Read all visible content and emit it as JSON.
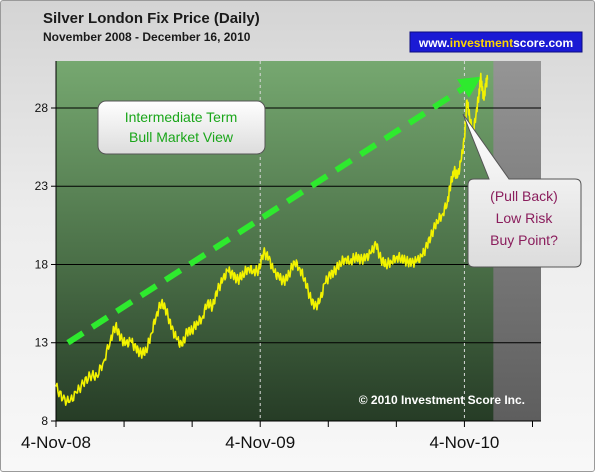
{
  "chart_data": {
    "type": "line",
    "title": "Silver London Fix Price (Daily)",
    "subtitle": "November 2008 - December 16, 2010",
    "website": {
      "prefix": "www.",
      "highlight": "investment",
      "suffix": "score.com"
    },
    "copyright": "© 2010 Investment Score Inc.",
    "yticks": [
      8,
      13,
      18,
      23,
      28
    ],
    "ylim": [
      8,
      31
    ],
    "xticks": [
      {
        "label": "4-Nov-08",
        "t": 0
      },
      {
        "label": "4-Nov-09",
        "t": 12
      },
      {
        "label": "4-Nov-10",
        "t": 24
      }
    ],
    "xlim": [
      0,
      28.5
    ],
    "series": [
      {
        "color": "#f2f200",
        "points": [
          [
            0.0,
            10.2
          ],
          [
            0.4,
            9.4
          ],
          [
            0.8,
            9.2
          ],
          [
            1.2,
            9.8
          ],
          [
            1.6,
            10.4
          ],
          [
            2.0,
            10.9
          ],
          [
            2.4,
            10.9
          ],
          [
            2.8,
            11.8
          ],
          [
            3.2,
            13.2
          ],
          [
            3.5,
            14.1
          ],
          [
            3.8,
            13.3
          ],
          [
            4.1,
            12.9
          ],
          [
            4.4,
            13.1
          ],
          [
            4.7,
            12.6
          ],
          [
            5.0,
            12.3
          ],
          [
            5.3,
            12.5
          ],
          [
            5.6,
            13.6
          ],
          [
            5.9,
            14.8
          ],
          [
            6.2,
            15.6
          ],
          [
            6.5,
            15.0
          ],
          [
            6.8,
            13.9
          ],
          [
            7.1,
            13.2
          ],
          [
            7.4,
            12.8
          ],
          [
            7.7,
            13.7
          ],
          [
            8.0,
            13.8
          ],
          [
            8.3,
            14.3
          ],
          [
            8.6,
            14.6
          ],
          [
            8.9,
            15.6
          ],
          [
            9.2,
            15.3
          ],
          [
            9.5,
            16.4
          ],
          [
            9.8,
            17.0
          ],
          [
            10.1,
            17.6
          ],
          [
            10.4,
            17.3
          ],
          [
            10.7,
            17.0
          ],
          [
            11.0,
            17.4
          ],
          [
            11.3,
            17.8
          ],
          [
            11.6,
            17.6
          ],
          [
            11.9,
            17.6
          ],
          [
            12.2,
            18.8
          ],
          [
            12.5,
            18.4
          ],
          [
            12.8,
            17.5
          ],
          [
            13.1,
            17.2
          ],
          [
            13.4,
            16.9
          ],
          [
            13.7,
            17.4
          ],
          [
            14.0,
            18.2
          ],
          [
            14.3,
            17.8
          ],
          [
            14.6,
            17.1
          ],
          [
            14.9,
            16.0
          ],
          [
            15.2,
            15.3
          ],
          [
            15.5,
            15.6
          ],
          [
            15.8,
            16.8
          ],
          [
            16.1,
            17.3
          ],
          [
            16.4,
            17.6
          ],
          [
            16.7,
            18.1
          ],
          [
            17.0,
            18.4
          ],
          [
            17.3,
            18.2
          ],
          [
            17.6,
            18.5
          ],
          [
            17.9,
            18.3
          ],
          [
            18.2,
            18.4
          ],
          [
            18.5,
            18.7
          ],
          [
            18.8,
            19.3
          ],
          [
            19.1,
            18.3
          ],
          [
            19.4,
            18.0
          ],
          [
            19.7,
            18.2
          ],
          [
            20.0,
            18.5
          ],
          [
            20.3,
            18.4
          ],
          [
            20.6,
            18.2
          ],
          [
            20.9,
            18.1
          ],
          [
            21.2,
            18.2
          ],
          [
            21.5,
            18.5
          ],
          [
            21.8,
            19.2
          ],
          [
            22.1,
            20.0
          ],
          [
            22.4,
            20.8
          ],
          [
            22.7,
            21.2
          ],
          [
            23.0,
            22.0
          ],
          [
            23.2,
            23.2
          ],
          [
            23.4,
            24.0
          ],
          [
            23.6,
            23.6
          ],
          [
            23.8,
            24.6
          ],
          [
            24.0,
            26.0
          ],
          [
            24.15,
            28.5
          ],
          [
            24.3,
            27.5
          ],
          [
            24.5,
            26.2
          ],
          [
            24.7,
            27.8
          ],
          [
            24.85,
            28.8
          ],
          [
            24.95,
            30.0
          ],
          [
            25.05,
            29.2
          ],
          [
            25.15,
            28.5
          ],
          [
            25.25,
            29.5
          ],
          [
            25.35,
            29.8
          ]
        ]
      }
    ],
    "trend_arrow": {
      "color": "#2eea2e",
      "from": [
        0.7,
        13.0
      ],
      "to": [
        25.0,
        30.0
      ]
    },
    "annotations": [
      {
        "lines": [
          "Intermediate Term",
          "Bull Market View"
        ],
        "color": "#1aa61a"
      },
      {
        "lines": [
          "(Pull Back)",
          "Low Risk",
          "Buy Point?"
        ],
        "color": "#8a1d5c"
      }
    ]
  }
}
